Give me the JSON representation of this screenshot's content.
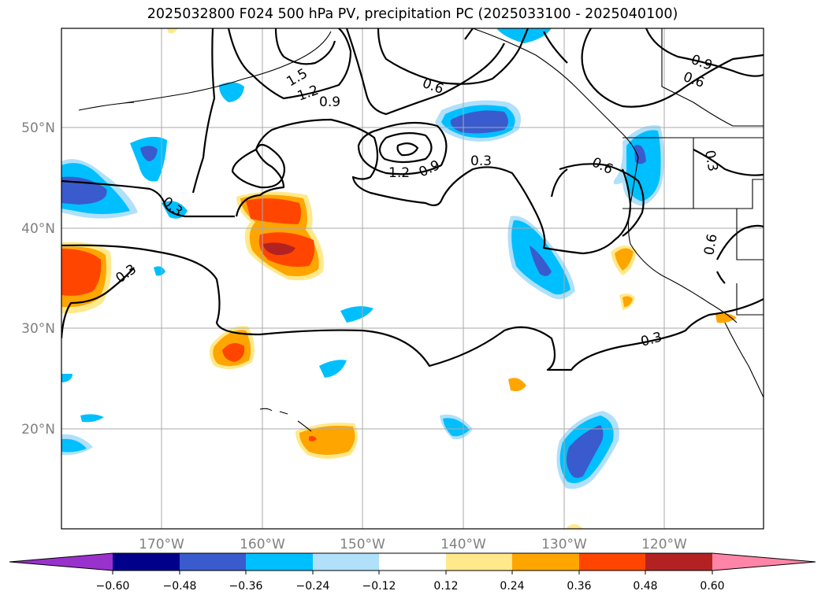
{
  "title": "2025032800 F024 500 hPa PV, precipitation PC (2025033100 - 2025040100)",
  "map": {
    "lat_labels": [
      "50°N",
      "40°N",
      "30°N",
      "20°N"
    ],
    "lon_labels": [
      "170°W",
      "160°W",
      "150°W",
      "140°W",
      "130°W",
      "120°W"
    ],
    "contour_labels": [
      "0.3",
      "0.6",
      "0.9",
      "1.2",
      "1.5"
    ]
  },
  "colorbar": {
    "ticks": [
      "−0.60",
      "−0.48",
      "−0.36",
      "−0.24",
      "−0.12",
      "0.12",
      "0.24",
      "0.36",
      "0.48",
      "0.60"
    ],
    "colors": [
      "#9932cc",
      "#00008b",
      "#3a5bcd",
      "#00bfff",
      "#b0e0fa",
      "#ffffff",
      "#ffe98a",
      "#ffa500",
      "#ff4500",
      "#b22222",
      "#ff85a8"
    ]
  }
}
